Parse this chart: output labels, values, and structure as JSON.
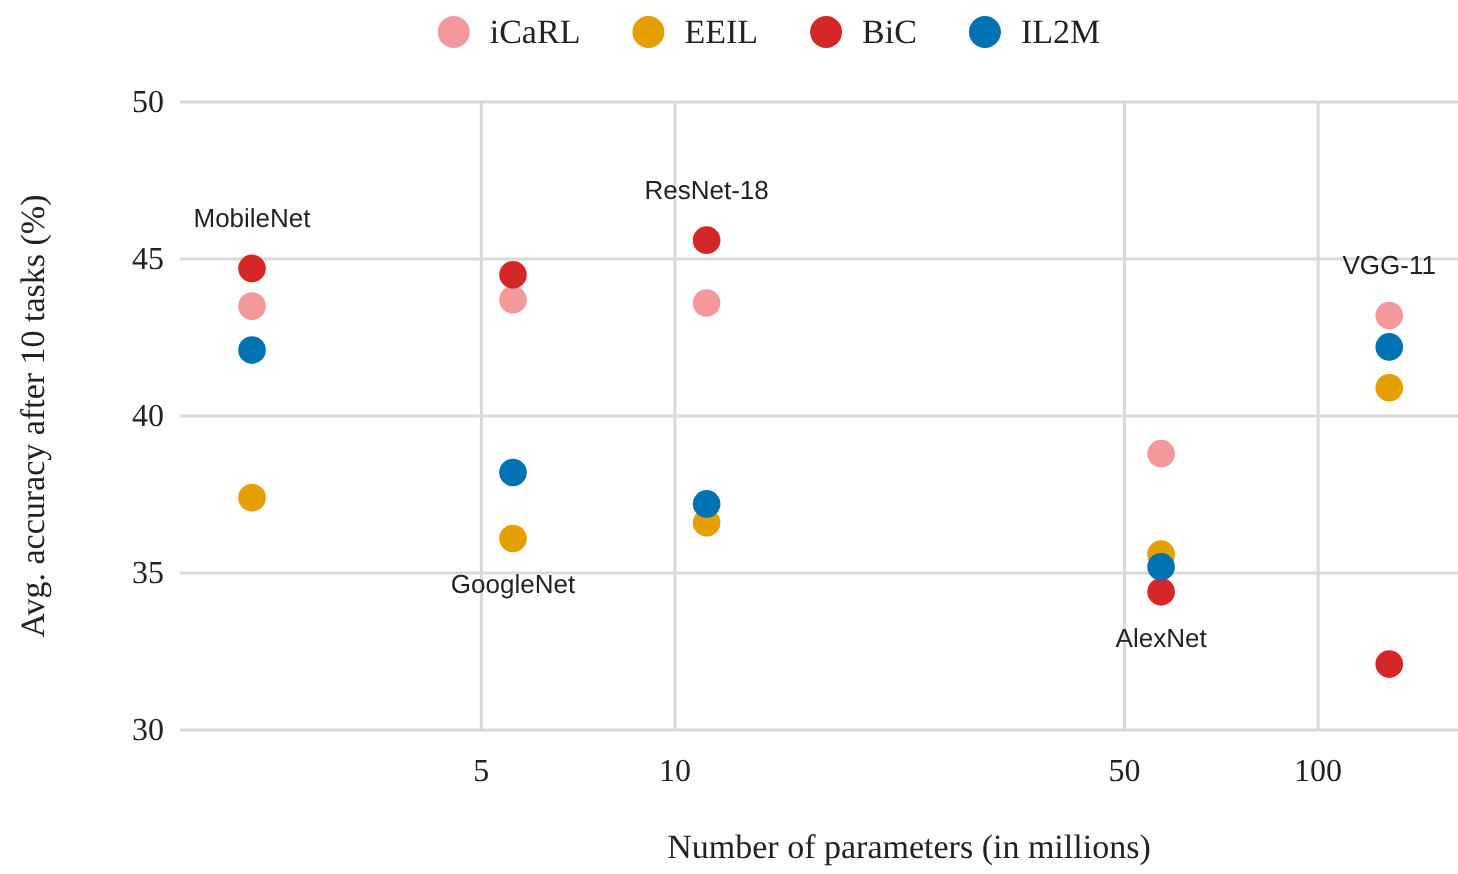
{
  "chart_data": {
    "type": "scatter",
    "xlabel": "Number of parameters (in millions)",
    "ylabel": "Avg. accuracy after 10 tasks (%)",
    "x": [
      2.2,
      5.6,
      11.2,
      57,
      129
    ],
    "series": [
      {
        "name": "iCaRL",
        "color": "#f4999b",
        "values": [
          43.5,
          43.7,
          43.6,
          38.8,
          43.2
        ]
      },
      {
        "name": "EEIL",
        "color": "#e69f00",
        "values": [
          37.4,
          36.1,
          36.6,
          35.6,
          40.9
        ]
      },
      {
        "name": "BiC",
        "color": "#d62728",
        "values": [
          44.7,
          44.5,
          45.6,
          34.4,
          32.1
        ]
      },
      {
        "name": "IL2M",
        "color": "#0072b2",
        "values": [
          42.1,
          38.2,
          37.2,
          35.2,
          42.2
        ]
      }
    ],
    "annotations": [
      "MobileNet",
      "GoogleNet",
      "ResNet-18",
      "AlexNet",
      "VGG-11"
    ],
    "log": "x",
    "xlim": [
      1.7,
      165
    ],
    "xticks": [
      5,
      10,
      50,
      100
    ],
    "ylim": [
      30,
      50
    ],
    "yticks": [
      30,
      35,
      40,
      45,
      50
    ],
    "grid": true,
    "legend": "top",
    "marker": "circle"
  }
}
